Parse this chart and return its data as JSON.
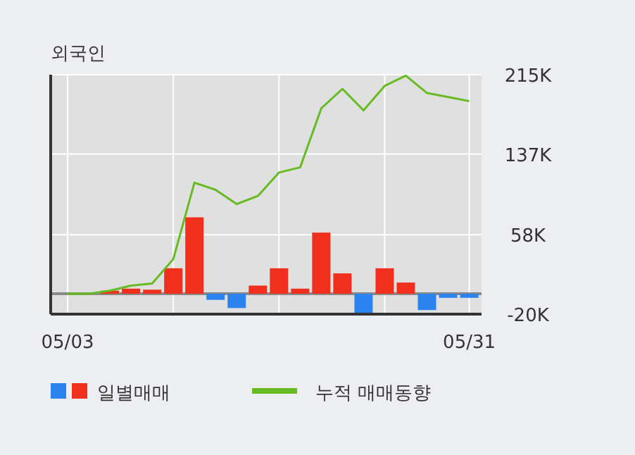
{
  "chart_data": {
    "type": "bar",
    "title": "외국인",
    "categories": [
      "05/03",
      null,
      null,
      null,
      null,
      null,
      null,
      null,
      null,
      null,
      null,
      null,
      null,
      null,
      null,
      null,
      null,
      null,
      null,
      "05/31"
    ],
    "series": [
      {
        "name": "일별매매",
        "values": [
          0,
          0,
          3,
          5,
          4,
          25,
          75,
          -6,
          -14,
          8,
          25,
          5,
          60,
          20,
          -20,
          25,
          11,
          -16,
          -4,
          -4
        ],
        "colors": [
          "#f0301c",
          "#f0301c",
          "#f0301c",
          "#f0301c",
          "#f0301c",
          "#f0301c",
          "#f0301c",
          "#2b83f0",
          "#2b83f0",
          "#f0301c",
          "#f0301c",
          "#f0301c",
          "#f0301c",
          "#f0301c",
          "#2b83f0",
          "#f0301c",
          "#f0301c",
          "#2b83f0",
          "#2b83f0",
          "#2b83f0"
        ]
      },
      {
        "name": "누적 매매동향",
        "type": "line",
        "color": "#66bb22",
        "values": [
          0,
          0,
          3,
          8,
          10,
          34,
          109,
          102,
          88,
          96,
          119,
          124,
          182,
          201,
          180,
          204,
          214,
          197,
          193,
          189
        ]
      }
    ],
    "ylim": [
      -20,
      215
    ],
    "yticks": [
      {
        "value": -20,
        "label": "-20K"
      },
      {
        "value": 58,
        "label": "58K"
      },
      {
        "value": 137,
        "label": "137K"
      },
      {
        "value": 215,
        "label": "215K"
      }
    ],
    "ref_lines": [
      {
        "axis": "y",
        "value": 0,
        "color": "#8a8a8a"
      }
    ],
    "grid": true,
    "legend": "bottom"
  }
}
